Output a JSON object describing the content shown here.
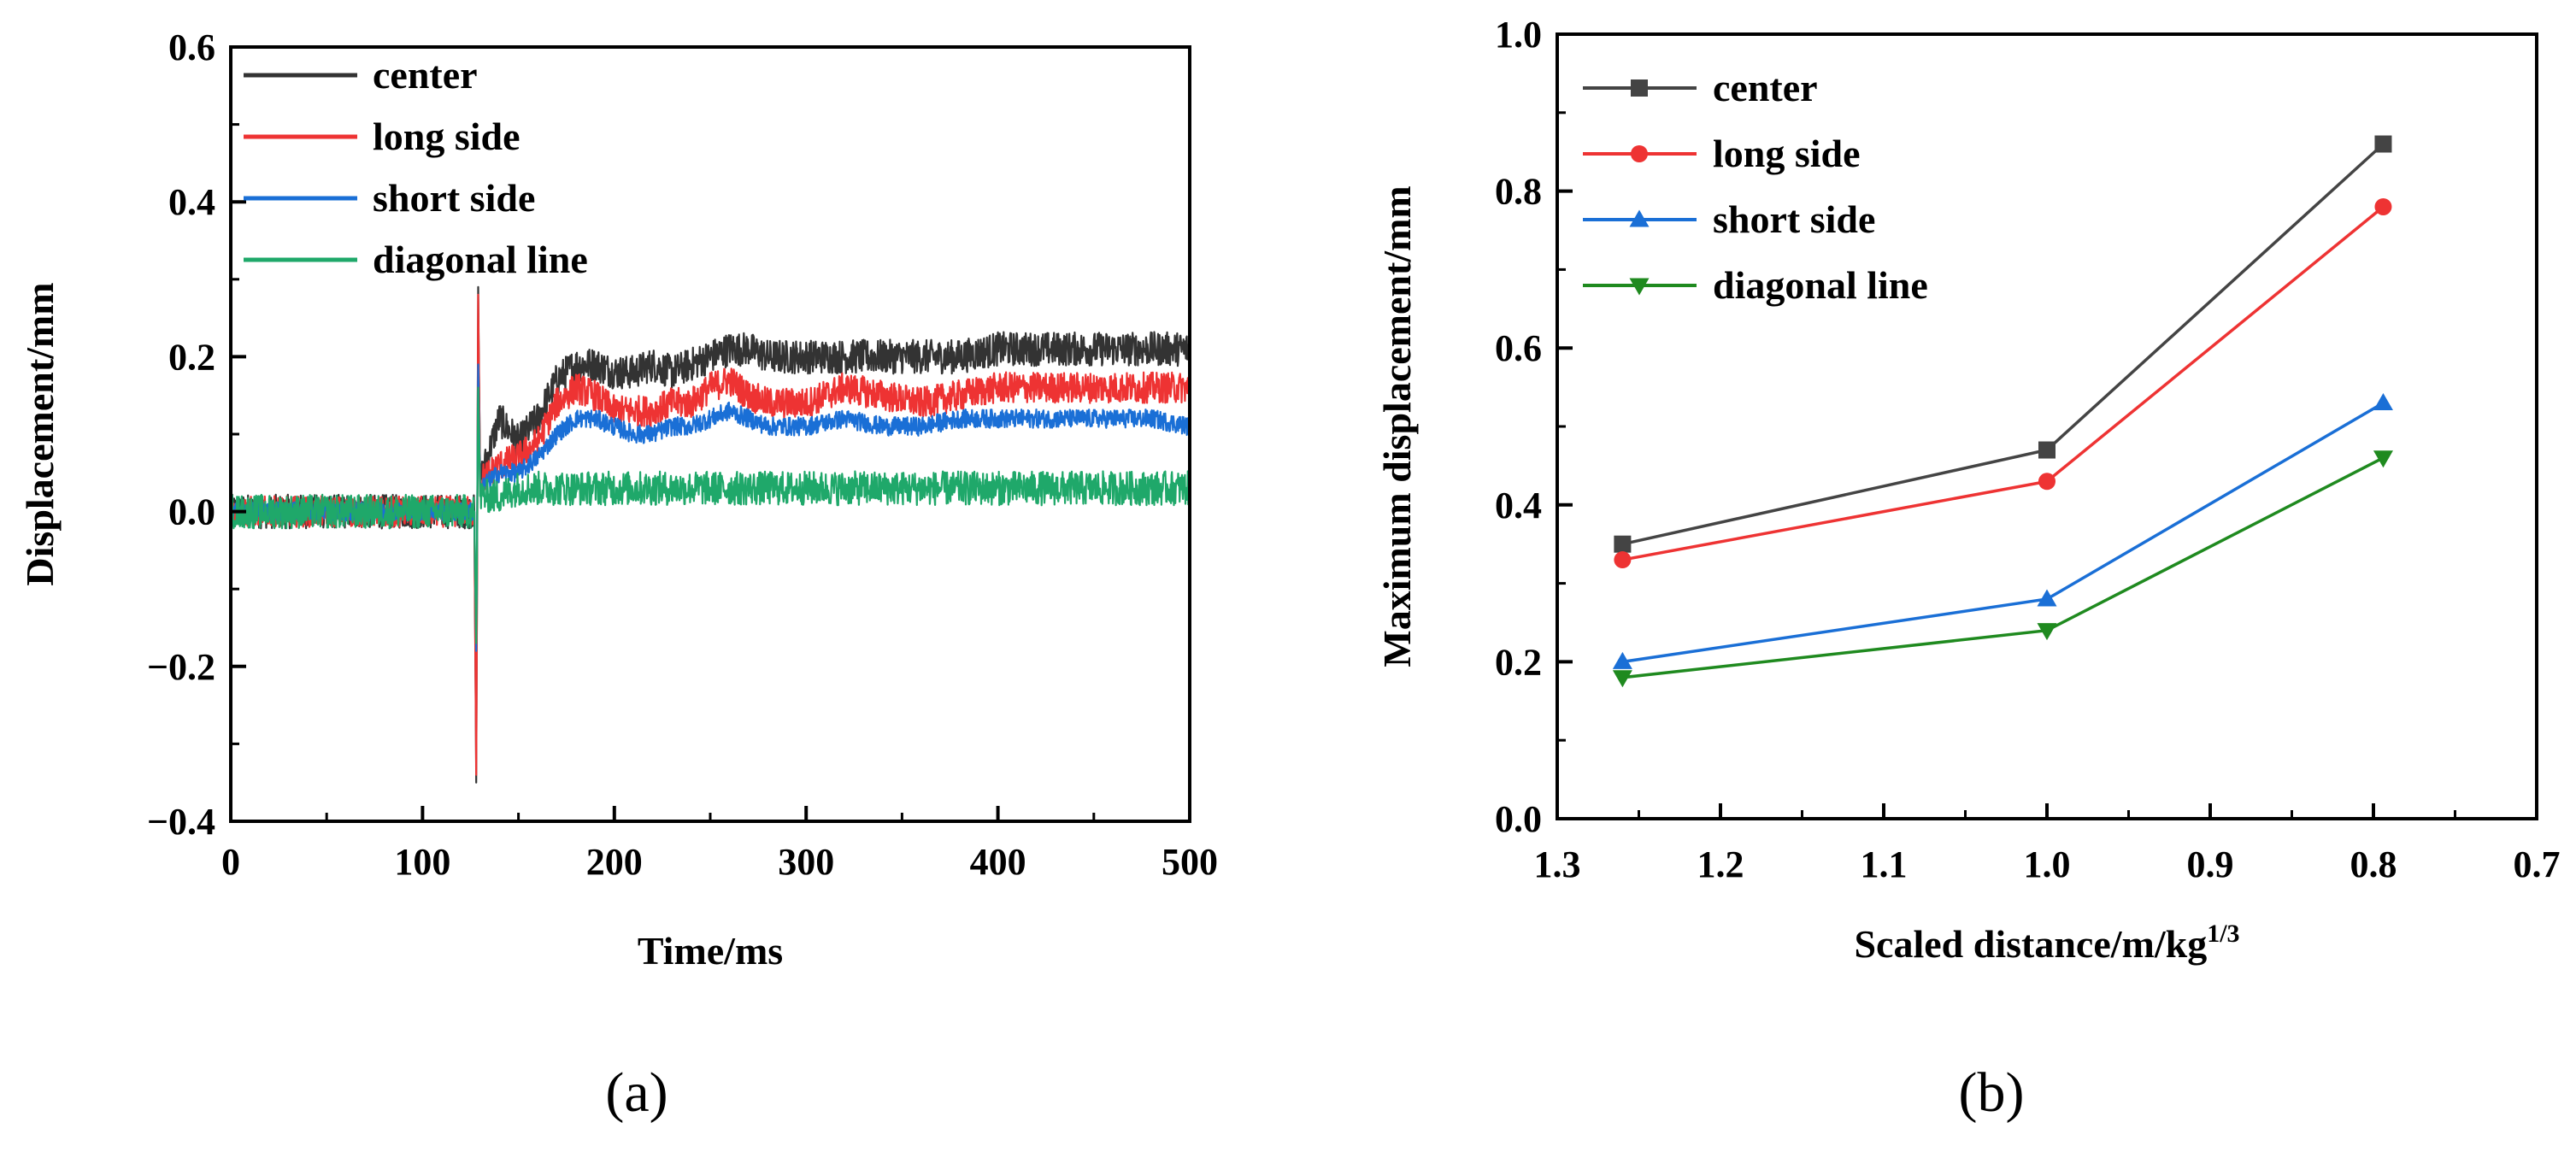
{
  "panel_a": {
    "label": "(a)",
    "chart_data": {
      "type": "line",
      "xlabel": "Time/ms",
      "ylabel": "Displacement/mm",
      "xlim": [
        0,
        500
      ],
      "ylim": [
        -0.4,
        0.6
      ],
      "x_ticks": [
        "0",
        "100",
        "200",
        "300",
        "400",
        "500"
      ],
      "y_ticks": [
        "−0.4",
        "−0.2",
        "0.0",
        "0.2",
        "0.4",
        "0.6"
      ],
      "legend_position": "top-left",
      "grid": false,
      "series": [
        {
          "name": "center",
          "color": "#333333",
          "x": [
            0,
            120,
            127,
            128,
            129,
            130,
            140,
            150,
            160,
            170,
            180,
            190,
            200,
            210,
            220,
            230,
            240,
            250,
            260,
            270,
            280,
            290,
            300,
            320,
            340,
            360,
            380,
            400,
            420,
            440,
            460,
            480,
            500
          ],
          "y": [
            0.0,
            0.0,
            0.0,
            -0.35,
            0.29,
            0.04,
            0.12,
            0.09,
            0.12,
            0.17,
            0.19,
            0.19,
            0.18,
            0.18,
            0.19,
            0.18,
            0.19,
            0.2,
            0.21,
            0.21,
            0.2,
            0.2,
            0.2,
            0.2,
            0.2,
            0.2,
            0.2,
            0.21,
            0.21,
            0.21,
            0.21,
            0.21,
            0.21
          ],
          "noise": 0.022
        },
        {
          "name": "long side",
          "color": "#ee3333",
          "x": [
            0,
            120,
            127,
            128,
            129,
            130,
            140,
            150,
            160,
            170,
            180,
            190,
            200,
            210,
            220,
            230,
            240,
            250,
            260,
            270,
            280,
            290,
            300,
            320,
            340,
            360,
            380,
            400,
            420,
            440,
            460,
            480,
            500
          ],
          "y": [
            0.0,
            0.0,
            0.0,
            -0.34,
            0.28,
            0.04,
            0.06,
            0.07,
            0.09,
            0.14,
            0.16,
            0.15,
            0.13,
            0.13,
            0.13,
            0.14,
            0.14,
            0.16,
            0.17,
            0.15,
            0.14,
            0.14,
            0.14,
            0.16,
            0.15,
            0.14,
            0.15,
            0.16,
            0.16,
            0.16,
            0.16,
            0.16,
            0.16
          ],
          "noise": 0.02
        },
        {
          "name": "short side",
          "color": "#1a6fd6",
          "x": [
            0,
            120,
            127,
            128,
            129,
            130,
            140,
            150,
            160,
            170,
            180,
            190,
            200,
            210,
            220,
            230,
            240,
            250,
            260,
            270,
            280,
            290,
            300,
            320,
            340,
            360,
            380,
            400,
            420,
            440,
            460,
            480,
            500
          ],
          "y": [
            0.0,
            0.0,
            0.0,
            -0.18,
            0.19,
            0.03,
            0.05,
            0.05,
            0.07,
            0.1,
            0.12,
            0.12,
            0.11,
            0.1,
            0.1,
            0.11,
            0.11,
            0.12,
            0.13,
            0.12,
            0.11,
            0.11,
            0.11,
            0.12,
            0.11,
            0.11,
            0.12,
            0.12,
            0.12,
            0.12,
            0.12,
            0.12,
            0.11
          ],
          "noise": 0.012
        },
        {
          "name": "diagonal line",
          "color": "#1fa86a",
          "x": [
            0,
            120,
            127,
            128,
            129,
            130,
            140,
            150,
            160,
            170,
            180,
            200,
            220,
            240,
            260,
            280,
            300,
            320,
            340,
            360,
            380,
            400,
            420,
            440,
            460,
            480,
            500
          ],
          "y": [
            0.0,
            0.0,
            0.0,
            -0.17,
            0.16,
            0.02,
            0.02,
            0.03,
            0.03,
            0.03,
            0.03,
            0.03,
            0.03,
            0.03,
            0.03,
            0.03,
            0.03,
            0.03,
            0.03,
            0.03,
            0.03,
            0.03,
            0.03,
            0.03,
            0.03,
            0.03,
            0.03
          ],
          "noise": 0.022
        }
      ]
    }
  },
  "panel_b": {
    "label": "(b)",
    "chart_data": {
      "type": "line",
      "xlabel": "Scaled distance/m/kg",
      "xlabel_superscript": "1/3",
      "ylabel": "Maximum displacement/mm",
      "xlim": [
        1.3,
        0.7
      ],
      "ylim": [
        0.0,
        1.0
      ],
      "x_ticks": [
        "1.3",
        "1.2",
        "1.1",
        "1.0",
        "0.9",
        "0.8",
        "0.7"
      ],
      "y_ticks": [
        "0.0",
        "0.2",
        "0.4",
        "0.6",
        "0.8",
        "1.0"
      ],
      "legend_position": "top-left",
      "grid": false,
      "x": [
        1.26,
        1.0,
        0.794
      ],
      "series": [
        {
          "name": "center",
          "color": "#444444",
          "marker": "square",
          "values": [
            0.35,
            0.47,
            0.86
          ]
        },
        {
          "name": "long side",
          "color": "#ee3333",
          "marker": "circle",
          "values": [
            0.33,
            0.43,
            0.78
          ]
        },
        {
          "name": "short side",
          "color": "#1a6fd6",
          "marker": "triangle-up",
          "values": [
            0.2,
            0.28,
            0.53
          ]
        },
        {
          "name": "diagonal line",
          "color": "#1f8a1f",
          "marker": "triangle-down",
          "values": [
            0.18,
            0.24,
            0.46
          ]
        }
      ]
    }
  }
}
